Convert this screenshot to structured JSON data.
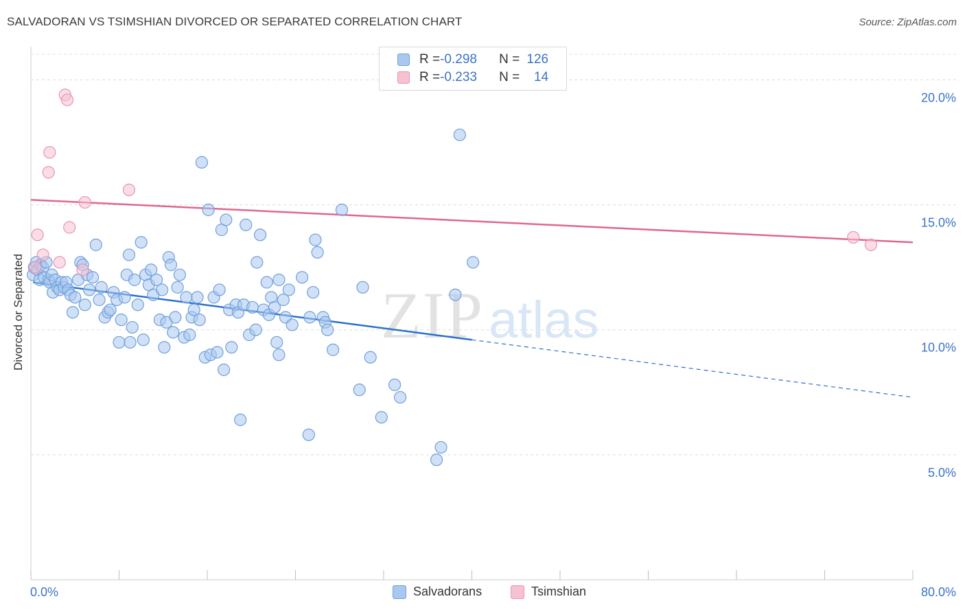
{
  "header": {
    "title": "SALVADORAN VS TSIMSHIAN DIVORCED OR SEPARATED CORRELATION CHART",
    "source": "Source: ZipAtlas.com"
  },
  "watermark": {
    "zip": "ZIP",
    "atlas": "atlas"
  },
  "legend": {
    "row1": {
      "r_label": "R = ",
      "r_value": "-0.298",
      "n_label": "N = ",
      "n_value": "126"
    },
    "row2": {
      "r_label": "R = ",
      "r_value": "-0.233",
      "n_label": "N = ",
      "n_value": "14"
    }
  },
  "colors": {
    "blue_fill": "#a9c8f0",
    "blue_stroke": "#6f9fdb",
    "blue_line": "#2a6fcf",
    "pink_fill": "#f6c1d3",
    "pink_stroke": "#ea93b3",
    "pink_line": "#e06690",
    "axis_text": "#3b73c6",
    "grid": "#dcdcdc"
  },
  "chart_data": {
    "type": "scatter",
    "title": "SALVADORAN VS TSIMSHIAN DIVORCED OR SEPARATED CORRELATION CHART",
    "xlabel": "",
    "ylabel": "Divorced or Separated",
    "xlim": [
      0,
      80
    ],
    "ylim": [
      0,
      21
    ],
    "x_tick_labels": [
      "0.0%",
      "80.0%"
    ],
    "y_ticks": [
      5,
      10,
      15,
      20
    ],
    "y_tick_labels": [
      "5.0%",
      "10.0%",
      "15.0%",
      "20.0%"
    ],
    "grid": true,
    "legend_position": "top-center",
    "series": [
      {
        "name": "Salvadorans",
        "r": -0.298,
        "n": 126,
        "trend": {
          "x0": 0.2,
          "y0": 11.9,
          "x1": 40.0,
          "y1": 9.6,
          "dashed_to_x": 80.0,
          "dashed_to_y": 7.3
        },
        "points": [
          [
            0.2,
            12.2
          ],
          [
            0.3,
            12.5
          ],
          [
            0.5,
            12.7
          ],
          [
            0.6,
            12.4
          ],
          [
            0.8,
            12.0
          ],
          [
            0.9,
            12.6
          ],
          [
            1.1,
            12.5
          ],
          [
            1.2,
            12.1
          ],
          [
            1.4,
            12.7
          ],
          [
            1.6,
            12.0
          ],
          [
            1.7,
            11.9
          ],
          [
            1.9,
            12.2
          ],
          [
            2.0,
            11.5
          ],
          [
            2.2,
            12.0
          ],
          [
            2.4,
            11.7
          ],
          [
            2.6,
            11.6
          ],
          [
            2.8,
            11.9
          ],
          [
            3.0,
            11.7
          ],
          [
            3.2,
            11.9
          ],
          [
            3.4,
            11.6
          ],
          [
            3.6,
            11.4
          ],
          [
            3.8,
            10.7
          ],
          [
            4.0,
            11.3
          ],
          [
            4.3,
            12.0
          ],
          [
            4.5,
            12.7
          ],
          [
            4.7,
            12.6
          ],
          [
            4.9,
            11.0
          ],
          [
            5.1,
            12.2
          ],
          [
            5.3,
            11.6
          ],
          [
            5.6,
            12.1
          ],
          [
            5.9,
            13.4
          ],
          [
            6.2,
            11.2
          ],
          [
            6.4,
            11.7
          ],
          [
            6.7,
            10.5
          ],
          [
            7.0,
            10.7
          ],
          [
            7.2,
            10.8
          ],
          [
            7.5,
            11.5
          ],
          [
            7.8,
            11.2
          ],
          [
            8.0,
            9.5
          ],
          [
            8.2,
            10.4
          ],
          [
            8.5,
            11.3
          ],
          [
            8.7,
            12.2
          ],
          [
            8.9,
            13.0
          ],
          [
            9.0,
            9.5
          ],
          [
            9.2,
            10.1
          ],
          [
            9.4,
            12.0
          ],
          [
            9.7,
            11.0
          ],
          [
            10.0,
            13.5
          ],
          [
            10.2,
            9.6
          ],
          [
            10.4,
            12.2
          ],
          [
            10.7,
            11.8
          ],
          [
            10.9,
            12.4
          ],
          [
            11.1,
            11.4
          ],
          [
            11.4,
            12.0
          ],
          [
            11.7,
            10.4
          ],
          [
            11.9,
            11.6
          ],
          [
            12.1,
            9.3
          ],
          [
            12.3,
            10.3
          ],
          [
            12.5,
            12.9
          ],
          [
            12.7,
            12.6
          ],
          [
            12.9,
            9.9
          ],
          [
            13.1,
            10.5
          ],
          [
            13.3,
            11.7
          ],
          [
            13.5,
            12.2
          ],
          [
            13.9,
            9.7
          ],
          [
            14.1,
            11.3
          ],
          [
            14.4,
            9.8
          ],
          [
            14.6,
            10.5
          ],
          [
            14.8,
            10.8
          ],
          [
            15.1,
            11.3
          ],
          [
            15.3,
            10.4
          ],
          [
            15.5,
            16.7
          ],
          [
            15.8,
            8.9
          ],
          [
            16.1,
            14.8
          ],
          [
            16.3,
            9.0
          ],
          [
            16.6,
            11.3
          ],
          [
            16.9,
            9.1
          ],
          [
            17.1,
            11.6
          ],
          [
            17.3,
            14.0
          ],
          [
            17.5,
            8.4
          ],
          [
            17.7,
            14.4
          ],
          [
            18.0,
            10.8
          ],
          [
            18.2,
            9.3
          ],
          [
            18.6,
            11.0
          ],
          [
            18.8,
            10.7
          ],
          [
            19.0,
            6.4
          ],
          [
            19.3,
            11.0
          ],
          [
            19.5,
            14.2
          ],
          [
            19.8,
            9.8
          ],
          [
            20.1,
            10.9
          ],
          [
            20.4,
            10.0
          ],
          [
            20.5,
            12.7
          ],
          [
            20.8,
            13.8
          ],
          [
            21.1,
            10.8
          ],
          [
            21.4,
            11.9
          ],
          [
            21.6,
            10.6
          ],
          [
            21.8,
            11.3
          ],
          [
            22.1,
            10.9
          ],
          [
            22.3,
            9.5
          ],
          [
            22.5,
            12.0
          ],
          [
            22.9,
            11.2
          ],
          [
            23.1,
            10.5
          ],
          [
            23.4,
            11.6
          ],
          [
            23.7,
            10.2
          ],
          [
            24.6,
            12.1
          ],
          [
            25.3,
            10.5
          ],
          [
            25.6,
            11.5
          ],
          [
            25.8,
            13.6
          ],
          [
            26.0,
            13.1
          ],
          [
            26.5,
            10.5
          ],
          [
            26.7,
            10.3
          ],
          [
            26.9,
            10.0
          ],
          [
            27.4,
            9.2
          ],
          [
            28.2,
            14.8
          ],
          [
            30.1,
            11.7
          ],
          [
            30.8,
            8.9
          ],
          [
            29.8,
            7.6
          ],
          [
            31.8,
            6.5
          ],
          [
            33.0,
            7.8
          ],
          [
            33.5,
            7.3
          ],
          [
            36.8,
            4.8
          ],
          [
            37.2,
            5.3
          ],
          [
            38.5,
            11.4
          ],
          [
            38.9,
            17.8
          ],
          [
            40.1,
            12.7
          ],
          [
            25.2,
            5.8
          ],
          [
            22.5,
            9.0
          ]
        ]
      },
      {
        "name": "Tsimshian",
        "r": -0.233,
        "n": 14,
        "trend": {
          "x0": 0.0,
          "y0": 15.2,
          "x1": 80.0,
          "y1": 13.5
        },
        "points": [
          [
            0.6,
            13.8
          ],
          [
            1.1,
            13.0
          ],
          [
            1.6,
            16.3
          ],
          [
            1.7,
            17.1
          ],
          [
            2.6,
            12.7
          ],
          [
            3.1,
            19.4
          ],
          [
            3.3,
            19.2
          ],
          [
            3.5,
            14.1
          ],
          [
            4.7,
            12.4
          ],
          [
            4.9,
            15.1
          ],
          [
            8.9,
            15.6
          ],
          [
            74.6,
            13.7
          ],
          [
            76.2,
            13.4
          ],
          [
            0.4,
            12.5
          ]
        ]
      }
    ]
  },
  "bottom_legend": {
    "series1": "Salvadorans",
    "series2": "Tsimshian"
  }
}
